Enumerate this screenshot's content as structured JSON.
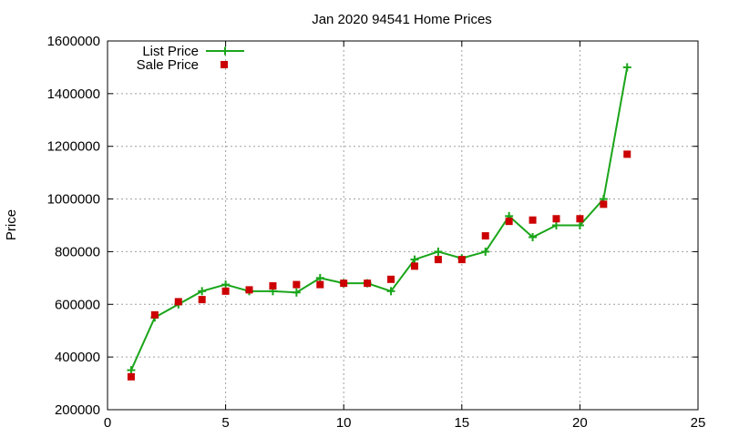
{
  "chart_data": {
    "type": "line",
    "title": "Jan 2020 94541 Home Prices",
    "xlabel": "",
    "ylabel": "Price",
    "xlim": [
      0,
      25
    ],
    "ylim": [
      200000,
      1600000
    ],
    "x_ticks": [
      0,
      5,
      10,
      15,
      20,
      25
    ],
    "y_ticks": [
      200000,
      400000,
      600000,
      800000,
      1000000,
      1200000,
      1400000,
      1600000
    ],
    "x_tick_labels": [
      "0",
      "5",
      "10",
      "15",
      "20",
      "25"
    ],
    "y_tick_labels": [
      "200000",
      "400000",
      "600000",
      "800000",
      "1000000",
      "1200000",
      "1400000",
      "1600000"
    ],
    "grid": true,
    "legend_position": "top-left",
    "series": [
      {
        "name": "List Price",
        "style": "linespoints",
        "marker": "plus",
        "color": "#1aa51a",
        "x": [
          1,
          2,
          3,
          4,
          5,
          6,
          7,
          8,
          9,
          10,
          11,
          12,
          13,
          14,
          15,
          16,
          17,
          18,
          19,
          20,
          21,
          22
        ],
        "y": [
          350000,
          550000,
          600000,
          650000,
          675000,
          650000,
          650000,
          645000,
          700000,
          680000,
          680000,
          650000,
          770000,
          800000,
          775000,
          800000,
          935000,
          855000,
          900000,
          900000,
          1000000,
          1500000
        ]
      },
      {
        "name": "Sale Price",
        "style": "points",
        "marker": "square",
        "color": "#cc0000",
        "x": [
          1,
          2,
          3,
          4,
          5,
          6,
          7,
          8,
          9,
          10,
          11,
          12,
          13,
          14,
          15,
          16,
          17,
          18,
          19,
          20,
          21,
          22
        ],
        "y": [
          325000,
          560000,
          610000,
          618000,
          650000,
          655000,
          670000,
          675000,
          675000,
          680000,
          680000,
          695000,
          745000,
          770000,
          770000,
          860000,
          915000,
          920000,
          925000,
          925000,
          980000,
          1170000
        ]
      }
    ]
  }
}
